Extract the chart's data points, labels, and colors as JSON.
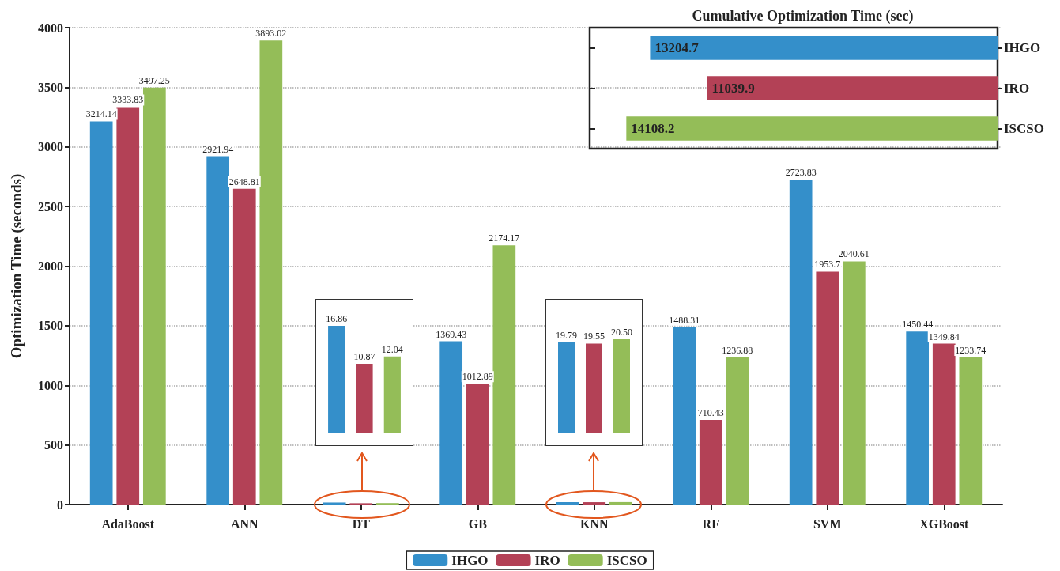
{
  "chart_data": [
    {
      "type": "bar",
      "ylabel": "Optimization Time (seconds)",
      "categories": [
        "AdaBoost",
        "ANN",
        "DT",
        "GB",
        "KNN",
        "RF",
        "SVM",
        "XGBoost"
      ],
      "ylim": [
        0,
        4000
      ],
      "yticks": [
        0,
        500,
        1000,
        1500,
        2000,
        2500,
        3000,
        3500,
        4000
      ],
      "grid": "y",
      "legend": "bottom",
      "series": [
        {
          "name": "IHGO",
          "color": "#348fca",
          "values": [
            3214.14,
            2921.94,
            16.86,
            1369.43,
            19.79,
            1488.31,
            2723.83,
            1450.44
          ],
          "value_labels": [
            "3214.14",
            "2921.94",
            null,
            "1369.43",
            null,
            "1488.31",
            "2723.83",
            "1450.44"
          ]
        },
        {
          "name": "IRO",
          "color": "#b34156",
          "values": [
            3333.83,
            2648.81,
            10.87,
            1012.89,
            19.55,
            710.43,
            1953.7,
            1349.84
          ],
          "value_labels": [
            "3333.83",
            "2648.81",
            null,
            "1012.89",
            null,
            "710.43",
            "1953.7",
            "1349.84"
          ]
        },
        {
          "name": "ISCSO",
          "color": "#94bd58",
          "values": [
            3497.25,
            3893.02,
            12.04,
            2174.17,
            20.5,
            1236.88,
            2040.61,
            1233.74
          ],
          "value_labels": [
            "3497.25",
            "3893.02",
            null,
            "2174.17",
            null,
            "1236.88",
            "2040.61",
            "1233.74"
          ]
        }
      ]
    },
    {
      "type": "bar",
      "title": "Cumulative Optimization Time (sec)",
      "orientation": "horizontal",
      "categories": [
        "IHGO",
        "IRO",
        "ISCSO"
      ],
      "values": [
        13204.7,
        11039.9,
        14108.2
      ],
      "colors": [
        "#348fca",
        "#b34156",
        "#94bd58"
      ],
      "data_labels": true
    },
    {
      "type": "bar",
      "categories": [
        null,
        null,
        null
      ],
      "values": [
        16.86,
        10.87,
        12.04
      ],
      "value_labels": [
        "16.86",
        "10.87",
        "12.04"
      ],
      "colors": [
        "#348fca",
        "#b34156",
        "#94bd58"
      ]
    },
    {
      "type": "bar",
      "categories": [
        null,
        null,
        null
      ],
      "values": [
        19.79,
        19.55,
        20.5
      ],
      "value_labels": [
        "19.79",
        "19.55",
        "20.50"
      ],
      "colors": [
        "#348fca",
        "#b34156",
        "#94bd58"
      ]
    }
  ]
}
